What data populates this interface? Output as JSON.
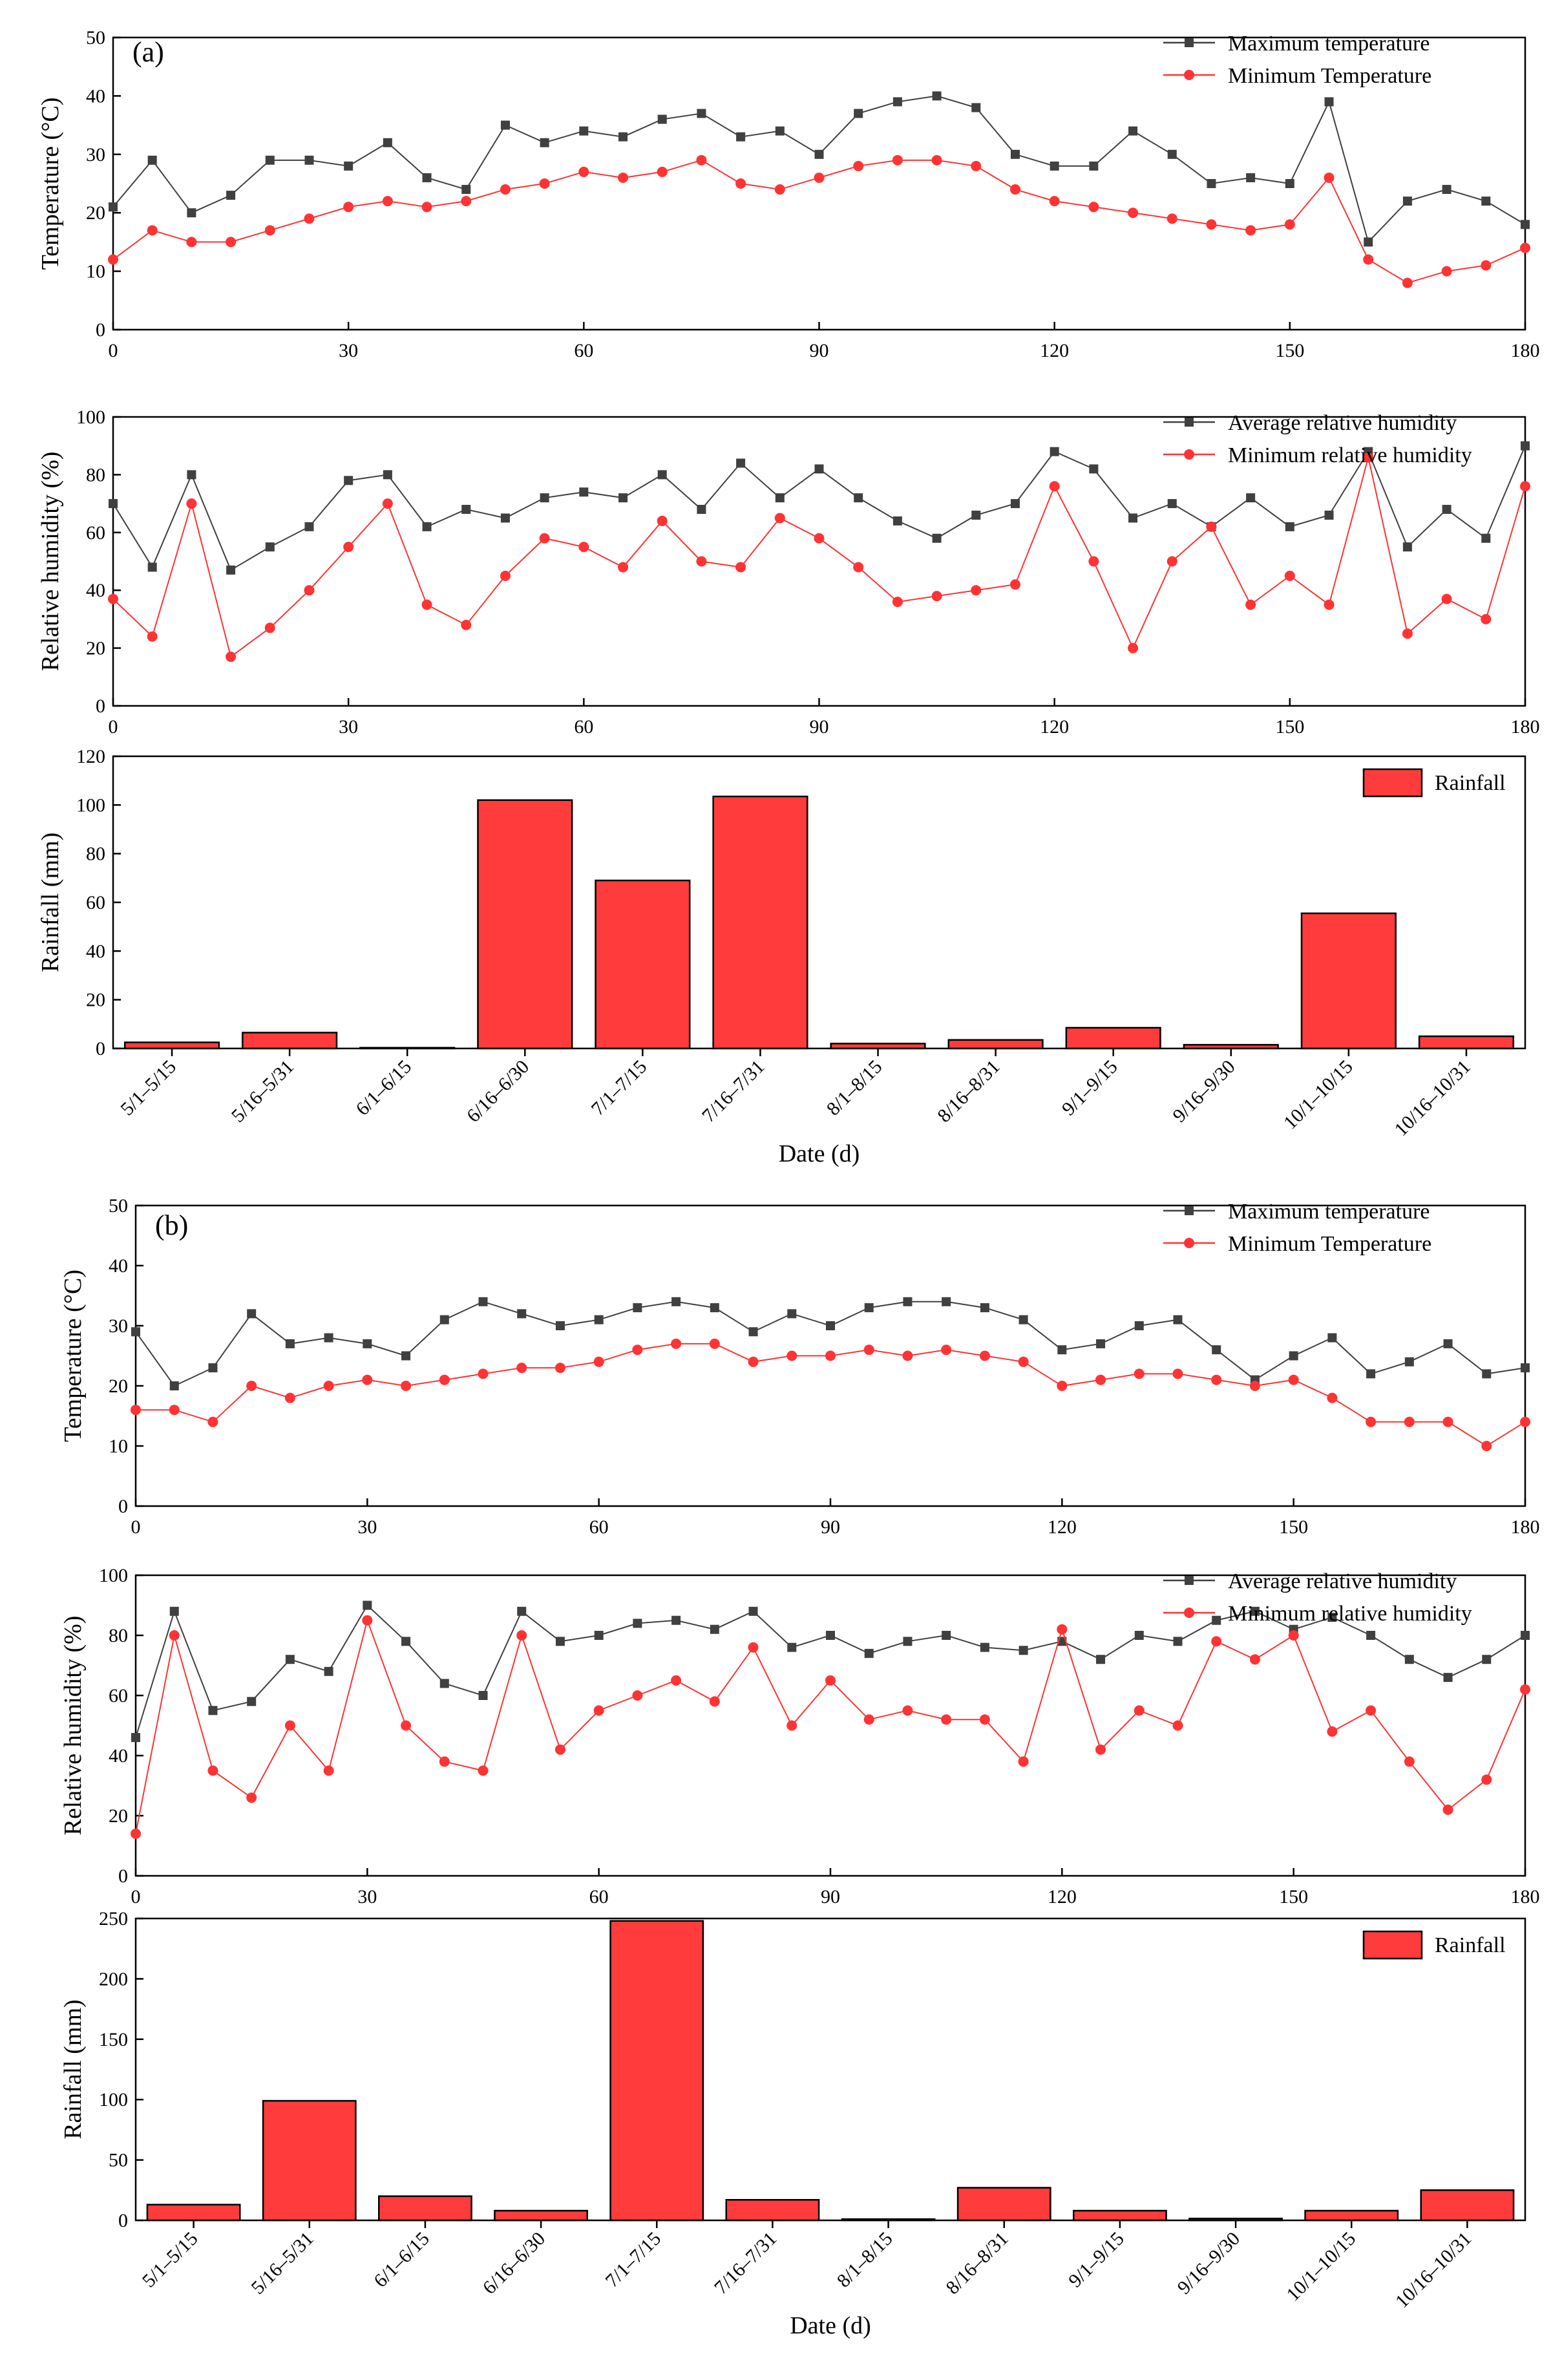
{
  "figure": {
    "panel_labels": [
      "(a)",
      "(b)"
    ],
    "colors": {
      "max_series": "#404040",
      "min_series": "#ff3333",
      "bar_fill": "#ff3b3b",
      "axis": "#000000"
    },
    "xlabel_date": "Date (d)"
  },
  "chart_data": [
    {
      "id": "a_temp",
      "panel": "(a)",
      "type": "line",
      "xlabel": "",
      "ylabel": "Temperature (°C)",
      "xlim": [
        0,
        180
      ],
      "ylim": [
        0,
        50
      ],
      "xticks": [
        0,
        30,
        60,
        90,
        120,
        150,
        180
      ],
      "yticks": [
        0,
        10,
        20,
        30,
        40,
        50
      ],
      "legend_position": "top-right",
      "series": [
        {
          "name": "Maximum temperature",
          "color": "#404040",
          "marker": "square",
          "x": [
            0,
            5,
            10,
            15,
            20,
            25,
            30,
            35,
            40,
            45,
            50,
            55,
            60,
            65,
            70,
            75,
            80,
            85,
            90,
            95,
            100,
            105,
            110,
            115,
            120,
            125,
            130,
            135,
            140,
            145,
            150,
            155,
            160,
            165,
            170,
            175,
            180
          ],
          "y": [
            21,
            29,
            20,
            23,
            29,
            29,
            28,
            32,
            26,
            24,
            35,
            32,
            34,
            33,
            36,
            37,
            33,
            34,
            30,
            37,
            39,
            40,
            38,
            30,
            28,
            28,
            34,
            30,
            25,
            26,
            25,
            39,
            15,
            22,
            24,
            22,
            18
          ]
        },
        {
          "name": "Minimum Temperature",
          "color": "#ff3333",
          "marker": "circle",
          "x": [
            0,
            5,
            10,
            15,
            20,
            25,
            30,
            35,
            40,
            45,
            50,
            55,
            60,
            65,
            70,
            75,
            80,
            85,
            90,
            95,
            100,
            105,
            110,
            115,
            120,
            125,
            130,
            135,
            140,
            145,
            150,
            155,
            160,
            165,
            170,
            175,
            180
          ],
          "y": [
            12,
            17,
            15,
            15,
            17,
            19,
            21,
            22,
            21,
            22,
            24,
            25,
            27,
            26,
            27,
            29,
            25,
            24,
            26,
            28,
            29,
            29,
            28,
            24,
            22,
            21,
            20,
            19,
            18,
            17,
            18,
            26,
            12,
            8,
            10,
            11,
            14
          ]
        }
      ]
    },
    {
      "id": "a_rh",
      "panel": "(a)",
      "type": "line",
      "xlabel": "",
      "ylabel": "Relative humidity (%)",
      "xlim": [
        0,
        180
      ],
      "ylim": [
        0,
        100
      ],
      "xticks": [
        0,
        30,
        60,
        90,
        120,
        150,
        180
      ],
      "yticks": [
        0,
        20,
        40,
        60,
        80,
        100
      ],
      "legend_position": "top-right",
      "series": [
        {
          "name": "Average relative humidity",
          "color": "#404040",
          "marker": "square",
          "x": [
            0,
            5,
            10,
            15,
            20,
            25,
            30,
            35,
            40,
            45,
            50,
            55,
            60,
            65,
            70,
            75,
            80,
            85,
            90,
            95,
            100,
            105,
            110,
            115,
            120,
            125,
            130,
            135,
            140,
            145,
            150,
            155,
            160,
            165,
            170,
            175,
            180
          ],
          "y": [
            70,
            48,
            80,
            47,
            55,
            62,
            78,
            80,
            62,
            68,
            65,
            72,
            74,
            72,
            80,
            68,
            84,
            72,
            82,
            72,
            64,
            58,
            66,
            70,
            88,
            82,
            65,
            70,
            62,
            72,
            62,
            66,
            88,
            55,
            68,
            58,
            90
          ]
        },
        {
          "name": "Minimum relative humidity",
          "color": "#ff3333",
          "marker": "circle",
          "x": [
            0,
            5,
            10,
            15,
            20,
            25,
            30,
            35,
            40,
            45,
            50,
            55,
            60,
            65,
            70,
            75,
            80,
            85,
            90,
            95,
            100,
            105,
            110,
            115,
            120,
            125,
            130,
            135,
            140,
            145,
            150,
            155,
            160,
            165,
            170,
            175,
            180
          ],
          "y": [
            37,
            24,
            70,
            17,
            27,
            40,
            55,
            70,
            35,
            28,
            45,
            58,
            55,
            48,
            64,
            50,
            48,
            65,
            58,
            48,
            36,
            38,
            40,
            42,
            76,
            50,
            20,
            50,
            62,
            35,
            45,
            35,
            86,
            25,
            37,
            30,
            76
          ]
        }
      ]
    },
    {
      "id": "a_rain",
      "panel": "(a)",
      "type": "bar",
      "xlabel": "Date (d)",
      "ylabel": "Rainfall (mm)",
      "ylim": [
        0,
        120
      ],
      "yticks": [
        0,
        20,
        40,
        60,
        80,
        100,
        120
      ],
      "legend_position": "top-right",
      "categories": [
        "5/1–5/15",
        "5/16–5/31",
        "6/1–6/15",
        "6/16–6/30",
        "7/1–7/15",
        "7/16–7/31",
        "8/1–8/15",
        "8/16–8/31",
        "9/1–9/15",
        "9/16–9/30",
        "10/1–10/15",
        "10/16–10/31"
      ],
      "series": [
        {
          "name": "Rainfall",
          "color": "#ff3b3b",
          "values": [
            2.5,
            6.5,
            0.3,
            102,
            69,
            103.5,
            2,
            3.5,
            8.5,
            1.5,
            55.5,
            5
          ]
        }
      ]
    },
    {
      "id": "b_temp",
      "panel": "(b)",
      "type": "line",
      "xlabel": "",
      "ylabel": "Temperature (°C)",
      "xlim": [
        0,
        180
      ],
      "ylim": [
        0,
        50
      ],
      "xticks": [
        0,
        30,
        60,
        90,
        120,
        150,
        180
      ],
      "yticks": [
        0,
        10,
        20,
        30,
        40,
        50
      ],
      "legend_position": "top-right",
      "series": [
        {
          "name": "Maximum temperature",
          "color": "#404040",
          "marker": "square",
          "x": [
            0,
            5,
            10,
            15,
            20,
            25,
            30,
            35,
            40,
            45,
            50,
            55,
            60,
            65,
            70,
            75,
            80,
            85,
            90,
            95,
            100,
            105,
            110,
            115,
            120,
            125,
            130,
            135,
            140,
            145,
            150,
            155,
            160,
            165,
            170,
            175,
            180
          ],
          "y": [
            29,
            20,
            23,
            32,
            27,
            28,
            27,
            25,
            31,
            34,
            32,
            30,
            31,
            33,
            34,
            33,
            29,
            32,
            30,
            33,
            34,
            34,
            33,
            31,
            26,
            27,
            30,
            31,
            26,
            21,
            25,
            28,
            22,
            24,
            27,
            22,
            23
          ]
        },
        {
          "name": "Minimum Temperature",
          "color": "#ff3333",
          "marker": "circle",
          "x": [
            0,
            5,
            10,
            15,
            20,
            25,
            30,
            35,
            40,
            45,
            50,
            55,
            60,
            65,
            70,
            75,
            80,
            85,
            90,
            95,
            100,
            105,
            110,
            115,
            120,
            125,
            130,
            135,
            140,
            145,
            150,
            155,
            160,
            165,
            170,
            175,
            180
          ],
          "y": [
            16,
            16,
            14,
            20,
            18,
            20,
            21,
            20,
            21,
            22,
            23,
            23,
            24,
            26,
            27,
            27,
            24,
            25,
            25,
            26,
            25,
            26,
            25,
            24,
            20,
            21,
            22,
            22,
            21,
            20,
            21,
            18,
            14,
            14,
            14,
            10,
            14
          ]
        }
      ]
    },
    {
      "id": "b_rh",
      "panel": "(b)",
      "type": "line",
      "xlabel": "",
      "ylabel": "Relative humidity (%)",
      "xlim": [
        0,
        180
      ],
      "ylim": [
        0,
        100
      ],
      "xticks": [
        0,
        30,
        60,
        90,
        120,
        150,
        180
      ],
      "yticks": [
        0,
        20,
        40,
        60,
        80,
        100
      ],
      "legend_position": "top-right",
      "series": [
        {
          "name": "Average relative humidity",
          "color": "#404040",
          "marker": "square",
          "x": [
            0,
            5,
            10,
            15,
            20,
            25,
            30,
            35,
            40,
            45,
            50,
            55,
            60,
            65,
            70,
            75,
            80,
            85,
            90,
            95,
            100,
            105,
            110,
            115,
            120,
            125,
            130,
            135,
            140,
            145,
            150,
            155,
            160,
            165,
            170,
            175,
            180
          ],
          "y": [
            46,
            88,
            55,
            58,
            72,
            68,
            90,
            78,
            64,
            60,
            88,
            78,
            80,
            84,
            85,
            82,
            88,
            76,
            80,
            74,
            78,
            80,
            76,
            75,
            78,
            72,
            80,
            78,
            85,
            88,
            82,
            86,
            80,
            72,
            66,
            72,
            80
          ]
        },
        {
          "name": "Minimum relative humidity",
          "color": "#ff3333",
          "marker": "circle",
          "x": [
            0,
            5,
            10,
            15,
            20,
            25,
            30,
            35,
            40,
            45,
            50,
            55,
            60,
            65,
            70,
            75,
            80,
            85,
            90,
            95,
            100,
            105,
            110,
            115,
            120,
            125,
            130,
            135,
            140,
            145,
            150,
            155,
            160,
            165,
            170,
            175,
            180
          ],
          "y": [
            14,
            80,
            35,
            26,
            50,
            35,
            85,
            50,
            38,
            35,
            80,
            42,
            55,
            60,
            65,
            58,
            76,
            50,
            65,
            52,
            55,
            52,
            52,
            38,
            82,
            42,
            55,
            50,
            78,
            72,
            80,
            48,
            55,
            38,
            22,
            32,
            62
          ]
        }
      ]
    },
    {
      "id": "b_rain",
      "panel": "(b)",
      "type": "bar",
      "xlabel": "Date (d)",
      "ylabel": "Rainfall (mm)",
      "ylim": [
        0,
        250
      ],
      "yticks": [
        0,
        50,
        100,
        150,
        200,
        250
      ],
      "legend_position": "top-right",
      "categories": [
        "5/1–5/15",
        "5/16–5/31",
        "6/1–6/15",
        "6/16–6/30",
        "7/1–7/15",
        "7/16–7/31",
        "8/1–8/15",
        "8/16–8/31",
        "9/1–9/15",
        "9/16–9/30",
        "10/1–10/15",
        "10/16–10/31"
      ],
      "series": [
        {
          "name": "Rainfall",
          "color": "#ff3b3b",
          "values": [
            13,
            99,
            20,
            8,
            248,
            17,
            1,
            27,
            8,
            1.5,
            8,
            25
          ]
        }
      ]
    }
  ]
}
